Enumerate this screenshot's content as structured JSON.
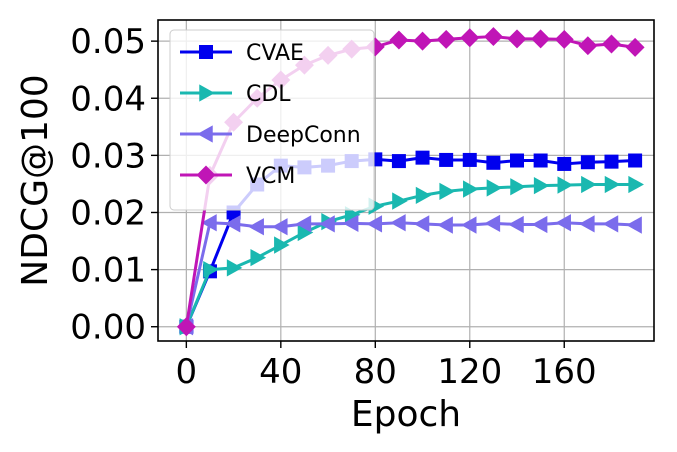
{
  "chart_data": {
    "type": "line",
    "title": "",
    "xlabel": "Epoch",
    "ylabel": "NDCG@100",
    "xlim": [
      -12,
      198
    ],
    "ylim": [
      -0.0025,
      0.0537
    ],
    "xticks": [
      0,
      40,
      80,
      120,
      160
    ],
    "xtick_labels": [
      "0",
      "40",
      "80",
      "120",
      "160"
    ],
    "yticks": [
      0.0,
      0.01,
      0.02,
      0.03,
      0.04,
      0.05
    ],
    "ytick_labels": [
      "0.00",
      "0.01",
      "0.02",
      "0.03",
      "0.04",
      "0.05"
    ],
    "grid": true,
    "legend_position": "upper-left",
    "x": [
      0,
      10,
      20,
      30,
      40,
      50,
      60,
      70,
      80,
      90,
      100,
      110,
      120,
      130,
      140,
      150,
      160,
      170,
      180,
      190
    ],
    "series": [
      {
        "name": "CVAE",
        "color": "#0000ee",
        "marker": "square",
        "values": [
          0.0,
          0.0097,
          0.02,
          0.0249,
          0.0282,
          0.0279,
          0.0282,
          0.029,
          0.0293,
          0.029,
          0.0296,
          0.0292,
          0.0292,
          0.0287,
          0.0291,
          0.0291,
          0.0285,
          0.0288,
          0.0289,
          0.0291
        ]
      },
      {
        "name": "CDL",
        "color": "#1ab8b0",
        "marker": "triangle-right",
        "values": [
          0.0,
          0.01,
          0.0103,
          0.0121,
          0.0143,
          0.0165,
          0.0184,
          0.0196,
          0.0211,
          0.022,
          0.023,
          0.0237,
          0.0241,
          0.0243,
          0.0245,
          0.0247,
          0.0248,
          0.0249,
          0.0249,
          0.0249
        ]
      },
      {
        "name": "DeepConn",
        "color": "#7b6cec",
        "marker": "triangle-left",
        "values": [
          0.0,
          0.0182,
          0.018,
          0.0175,
          0.0175,
          0.018,
          0.018,
          0.0181,
          0.018,
          0.0182,
          0.018,
          0.0178,
          0.0178,
          0.0181,
          0.0179,
          0.0179,
          0.0182,
          0.018,
          0.018,
          0.0178
        ]
      },
      {
        "name": "VCM",
        "color": "#c015b6",
        "marker": "diamond",
        "values": [
          0.0,
          0.0265,
          0.0358,
          0.04,
          0.0432,
          0.0458,
          0.0475,
          0.0486,
          0.049,
          0.0502,
          0.05,
          0.0503,
          0.0506,
          0.0508,
          0.0504,
          0.0504,
          0.0503,
          0.0492,
          0.0495,
          0.0489
        ]
      }
    ]
  }
}
